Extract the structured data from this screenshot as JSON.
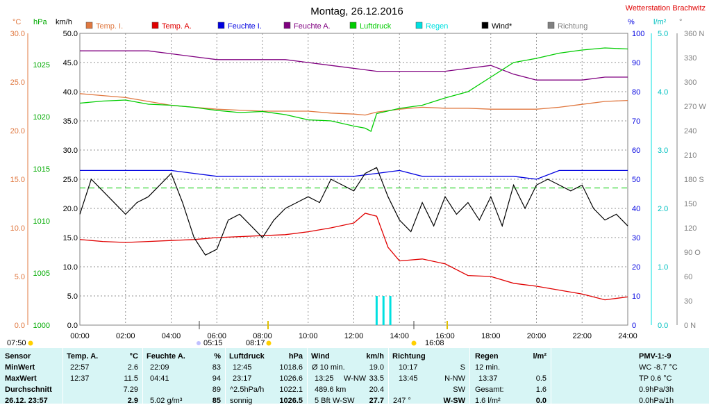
{
  "title": "Montag, 26.12.2016",
  "station": "Wetterstation Brachwitz",
  "colors": {
    "temp_i": "#e07840",
    "temp_a": "#e00000",
    "feuchte_i": "#0000e0",
    "feuchte_a": "#800080",
    "luftdruck": "#00cc00",
    "regen": "#00e0e0",
    "wind": "#000000",
    "richtung": "#808080",
    "panel_bg": "#d7f5f5"
  },
  "legend": [
    {
      "label": "Temp. I.",
      "color": "#e07840"
    },
    {
      "label": "Temp. A.",
      "color": "#e00000"
    },
    {
      "label": "Feuchte I.",
      "color": "#0000e0"
    },
    {
      "label": "Feuchte A.",
      "color": "#800080"
    },
    {
      "label": "Luftdruck",
      "color": "#00cc00"
    },
    {
      "label": "Regen",
      "color": "#00e0e0"
    },
    {
      "label": "Wind*",
      "color": "#000000"
    },
    {
      "label": "Richtung",
      "color": "#808080"
    }
  ],
  "axes_units": {
    "celsius": "°C",
    "hpa": "hPa",
    "kmh": "km/h",
    "percent": "%",
    "rain": "l/m²",
    "degree": "°"
  },
  "chart_data": {
    "type": "line",
    "title": "Montag, 26.12.2016",
    "x_ticks": [
      "00:00",
      "02:00",
      "04:00",
      "06:00",
      "08:00",
      "10:00",
      "12:00",
      "14:00",
      "16:00",
      "18:00",
      "20:00",
      "22:00",
      "24:00"
    ],
    "axes": {
      "temp_c": {
        "range": [
          0,
          30
        ],
        "ticks": [
          "0.0",
          "5.0",
          "10.0",
          "15.0",
          "20.0",
          "25.0",
          "30.0"
        ]
      },
      "pressure_hpa": {
        "range": [
          1000,
          1028
        ],
        "ticks": [
          "1000",
          "1005",
          "1010",
          "1015",
          "1020",
          "1025"
        ]
      },
      "wind_kmh": {
        "range": [
          0,
          50
        ],
        "ticks": [
          "0.0",
          "5.0",
          "10.0",
          "15.0",
          "20.0",
          "25.0",
          "30.0",
          "35.0",
          "40.0",
          "45.0",
          "50.0"
        ]
      },
      "humidity_pct": {
        "range": [
          0,
          100
        ],
        "ticks": [
          "0",
          "10",
          "20",
          "30",
          "40",
          "50",
          "60",
          "70",
          "80",
          "90",
          "100"
        ]
      },
      "rain_lm2": {
        "range": [
          0,
          5
        ],
        "ticks": [
          "0.0",
          "1.0",
          "2.0",
          "3.0",
          "4.0",
          "5.0"
        ]
      },
      "direction_deg": {
        "range": [
          0,
          360
        ],
        "ticks": [
          "0 N",
          "30",
          "60",
          "90 O",
          "120",
          "150",
          "180 S",
          "210",
          "240",
          "270 W",
          "300",
          "330",
          "360 N"
        ]
      }
    },
    "series": [
      {
        "name": "Temp. I.",
        "axis": "temp_c",
        "x": [
          0,
          1,
          2,
          3,
          4,
          5,
          6,
          7,
          8,
          9,
          10,
          11,
          12,
          12.5,
          13,
          14,
          15,
          16,
          17,
          18,
          19,
          20,
          21,
          22,
          23,
          24
        ],
        "values": [
          23.8,
          23.6,
          23.4,
          23.0,
          22.6,
          22.4,
          22.2,
          22.1,
          22.0,
          22.0,
          22.0,
          21.8,
          21.7,
          21.6,
          21.9,
          22.2,
          22.4,
          22.3,
          22.3,
          22.2,
          22.2,
          22.2,
          22.4,
          22.7,
          23.0,
          23.1
        ]
      },
      {
        "name": "Temp. A.",
        "axis": "temp_c",
        "x": [
          0,
          1,
          2,
          3,
          4,
          5,
          6,
          7,
          8,
          9,
          10,
          11,
          12,
          12.5,
          13,
          13.5,
          14,
          15,
          16,
          17,
          18,
          19,
          20,
          21,
          22,
          23,
          24
        ],
        "values": [
          8.8,
          8.6,
          8.5,
          8.6,
          8.7,
          8.8,
          9.0,
          9.1,
          9.2,
          9.3,
          9.6,
          10.0,
          10.5,
          11.5,
          11.2,
          8.0,
          6.6,
          6.8,
          6.3,
          5.1,
          5.0,
          4.3,
          4.0,
          3.6,
          3.2,
          2.6,
          2.9
        ]
      },
      {
        "name": "Feuchte I.",
        "axis": "humidity_pct",
        "x": [
          0,
          1,
          2,
          3,
          4,
          5,
          6,
          7,
          8,
          9,
          10,
          11,
          12,
          13,
          14,
          15,
          16,
          17,
          18,
          19,
          20,
          21,
          22,
          23,
          24
        ],
        "values": [
          53,
          53,
          53,
          53,
          53,
          52,
          51,
          51,
          51,
          51,
          51,
          51,
          51,
          52,
          53,
          51,
          51,
          51,
          51,
          51,
          50,
          53,
          53,
          53,
          53
        ]
      },
      {
        "name": "Feuchte A.",
        "axis": "humidity_pct",
        "x": [
          0,
          1,
          2,
          3,
          4,
          5,
          6,
          7,
          8,
          9,
          10,
          11,
          12,
          13,
          14,
          15,
          16,
          17,
          18,
          19,
          20,
          21,
          22,
          23,
          24
        ],
        "values": [
          94,
          94,
          94,
          94,
          93,
          92,
          91,
          91,
          91,
          91,
          90,
          89,
          88,
          87,
          87,
          87,
          87,
          88,
          89,
          86,
          84,
          84,
          84,
          85,
          85
        ]
      },
      {
        "name": "Luftdruck",
        "axis": "pressure_hpa",
        "x": [
          0,
          1,
          2,
          3,
          4,
          5,
          6,
          7,
          8,
          9,
          10,
          11,
          12,
          12.5,
          12.75,
          13,
          14,
          15,
          16,
          17,
          18,
          19,
          20,
          21,
          22,
          23,
          24
        ],
        "values": [
          1021.3,
          1021.5,
          1021.6,
          1021.2,
          1021.1,
          1020.9,
          1020.6,
          1020.4,
          1020.5,
          1020.2,
          1019.7,
          1019.6,
          1019.1,
          1018.9,
          1018.6,
          1020.3,
          1020.8,
          1021.1,
          1021.8,
          1022.4,
          1023.8,
          1025.2,
          1025.6,
          1026.1,
          1026.4,
          1026.6,
          1026.5
        ]
      },
      {
        "name": "Wind*",
        "axis": "wind_kmh",
        "x": [
          0,
          0.5,
          1,
          1.5,
          2,
          2.5,
          3,
          3.5,
          4,
          4.5,
          5,
          5.5,
          6,
          6.5,
          7,
          7.5,
          8,
          8.5,
          9,
          9.5,
          10,
          10.5,
          11,
          11.5,
          12,
          12.5,
          13,
          13.5,
          14,
          14.5,
          15,
          15.5,
          16,
          16.5,
          17,
          17.5,
          18,
          18.5,
          19,
          19.5,
          20,
          20.5,
          21,
          21.5,
          22,
          22.5,
          23,
          23.5,
          24
        ],
        "values": [
          19,
          25,
          23,
          21,
          19,
          21,
          22,
          24,
          26,
          21,
          15,
          12,
          13,
          18,
          19,
          17,
          15,
          18,
          20,
          21,
          22,
          21,
          25,
          24,
          23,
          26,
          27,
          22,
          18,
          16,
          21,
          17,
          22,
          19,
          21,
          18,
          22,
          17,
          24,
          20,
          24,
          25,
          24,
          23,
          24,
          20,
          18,
          19,
          17
        ]
      },
      {
        "name": "Regen",
        "axis": "rain_lm2",
        "x": [
          13.0,
          13.3,
          13.6
        ],
        "values": [
          0.5,
          0.5,
          0.5
        ]
      }
    ],
    "reference_line": {
      "axis": "temp_c",
      "value": 14.1
    },
    "events": [
      {
        "label": "07:50"
      },
      {
        "label": "05:15"
      },
      {
        "label": "08:17"
      },
      {
        "label": "16:08"
      }
    ]
  },
  "stats": {
    "row_labels": [
      "Sensor",
      "MinWert",
      "MaxWert",
      "Durchschnitt",
      "26.12. 23:57"
    ],
    "temp_a": {
      "header": "Temp. A.",
      "unit": "°C",
      "rows": [
        [
          "22:57",
          "2.6"
        ],
        [
          "12:37",
          "11.5"
        ],
        [
          "",
          "7.29"
        ],
        [
          "",
          "2.9"
        ]
      ]
    },
    "feuchte_a": {
      "header": "Feuchte A.",
      "unit": "%",
      "rows": [
        [
          "22:09",
          "83"
        ],
        [
          "04:41",
          "94"
        ],
        [
          "",
          "89"
        ],
        [
          "5.02 g/m³",
          "85"
        ]
      ]
    },
    "luftdruck": {
      "header": "Luftdruck",
      "unit": "hPa",
      "rows": [
        [
          "12:45",
          "1018.6"
        ],
        [
          "23:17",
          "1026.6"
        ],
        [
          "^2.5hPa/h",
          "1022.1"
        ],
        [
          "sonnig",
          "1026.5"
        ]
      ]
    },
    "wind": {
      "header": "Wind",
      "unit": "km/h",
      "rows": [
        [
          "Ø 10 min.",
          "",
          "19.0"
        ],
        [
          "13:25",
          "W-NW",
          "33.5"
        ],
        [
          "489.6 km",
          "",
          "20.4"
        ],
        [
          "5 Bft",
          "W-SW",
          "27.7"
        ]
      ]
    },
    "richtung": {
      "header": "Richtung",
      "rows": [
        [
          "10:17",
          "S"
        ],
        [
          "13:45",
          "N-NW"
        ],
        [
          "",
          "SW"
        ],
        [
          "247 °",
          "W-SW"
        ]
      ]
    },
    "regen": {
      "header": "Regen",
      "unit": "l/m²",
      "rows": [
        [
          "12 min.",
          ""
        ],
        [
          "13:37",
          "0.5"
        ],
        [
          "Gesamt:",
          "1.6"
        ],
        [
          "1.6 l/m²",
          "0.0"
        ]
      ]
    },
    "pmv": {
      "header": "PMV-1:-9",
      "rows": [
        "WC -8.7 °C",
        "TP 0.6 °C",
        "0.9hPa/3h",
        "0.0hPa/1h"
      ]
    }
  }
}
